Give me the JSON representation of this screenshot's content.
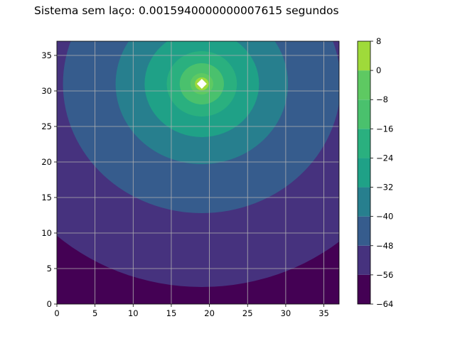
{
  "chart_data": {
    "type": "contourf",
    "title": "Sistema sem laço: 0.0015940000000007615 segundos",
    "xlabel": "",
    "ylabel": "",
    "xlim": [
      0,
      37
    ],
    "ylim": [
      0,
      37
    ],
    "x_ticks": [
      0,
      5,
      10,
      15,
      20,
      25,
      30,
      35
    ],
    "y_ticks": [
      0,
      5,
      10,
      15,
      20,
      25,
      30,
      35
    ],
    "grid": true,
    "source_point": {
      "x": 19,
      "y": 31
    },
    "levels": [
      -64,
      -56,
      -48,
      -40,
      -32,
      -24,
      -16,
      -8,
      0,
      8
    ],
    "level_colors": [
      "#440154",
      "#46327e",
      "#365c8d",
      "#277f8e",
      "#1fa187",
      "#2ab07f",
      "#4ac16d",
      "#5ec962",
      "#9fda3a",
      "#dfe318"
    ],
    "contour_radii": [
      {
        "level": -56,
        "radius": 28.6
      },
      {
        "level": -48,
        "radius": 18.2
      },
      {
        "level": -40,
        "radius": 11.3
      },
      {
        "level": -32,
        "radius": 7.5
      },
      {
        "level": -24,
        "radius": 4.6
      },
      {
        "level": -16,
        "radius": 2.9
      },
      {
        "level": -8,
        "radius": 1.5
      },
      {
        "level": 0,
        "radius": 0.9
      }
    ],
    "colorbar": {
      "ticks": [
        "8",
        "0",
        "−8",
        "−16",
        "−24",
        "−32",
        "−40",
        "−48",
        "−56",
        "−64"
      ],
      "range": [
        -64,
        8
      ]
    }
  }
}
